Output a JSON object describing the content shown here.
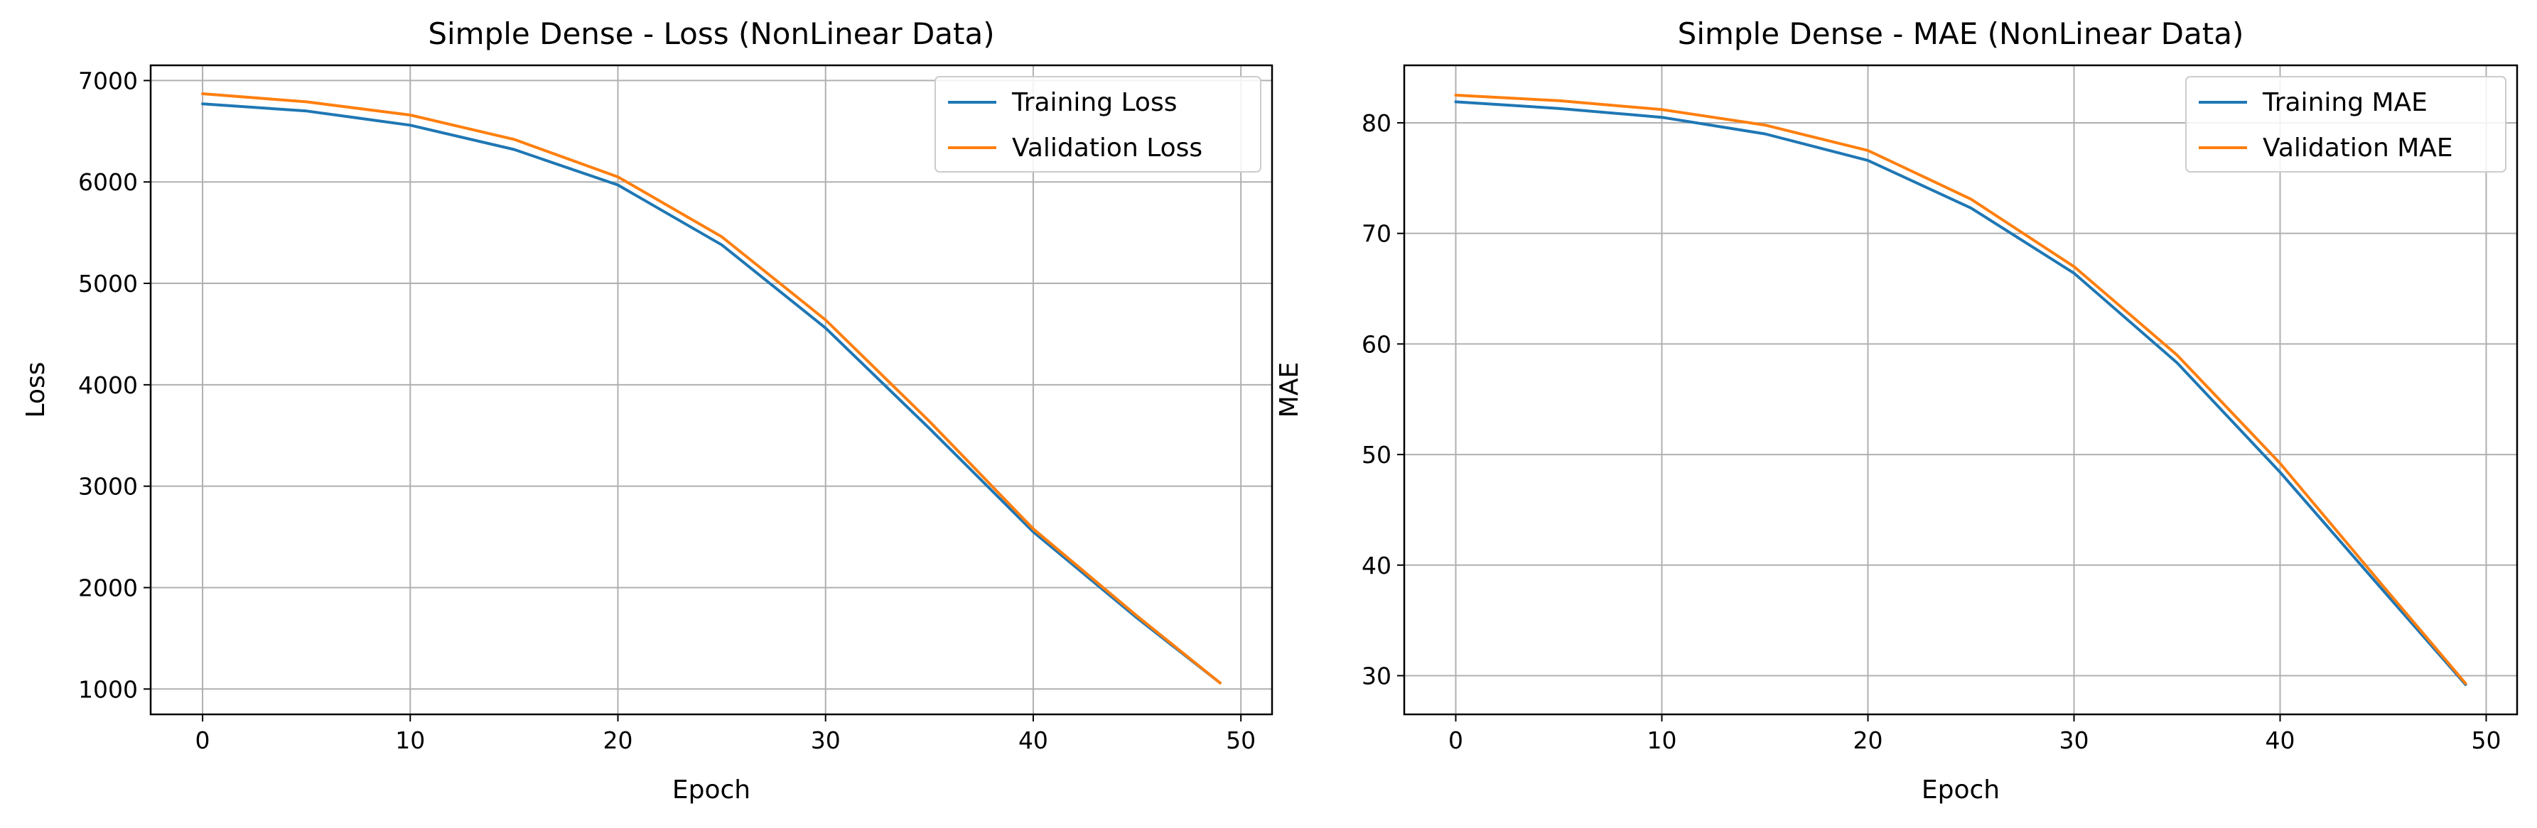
{
  "chart_data": [
    {
      "type": "line",
      "title": "Simple Dense - Loss (NonLinear Data)",
      "xlabel": "Epoch",
      "ylabel": "Loss",
      "xlim": [
        -2.5,
        51.5
      ],
      "ylim": [
        750,
        7150
      ],
      "xticks": [
        0,
        10,
        20,
        30,
        40,
        50
      ],
      "xtick_labels": [
        "0",
        "10",
        "20",
        "30",
        "40",
        "50"
      ],
      "yticks": [
        1000,
        2000,
        3000,
        4000,
        5000,
        6000,
        7000
      ],
      "ytick_labels": [
        "1000",
        "2000",
        "3000",
        "4000",
        "5000",
        "6000",
        "7000"
      ],
      "grid": true,
      "legend_position": "upper right",
      "x": [
        0,
        5,
        10,
        15,
        20,
        25,
        30,
        35,
        40,
        45,
        49
      ],
      "series": [
        {
          "name": "Training Loss",
          "color": "#1f77b4",
          "values": [
            6770,
            6700,
            6560,
            6320,
            5970,
            5380,
            4560,
            3570,
            2550,
            1700,
            1060
          ]
        },
        {
          "name": "Validation Loss",
          "color": "#ff7f0e",
          "values": [
            6870,
            6790,
            6660,
            6420,
            6050,
            5460,
            4640,
            3640,
            2580,
            1720,
            1060
          ]
        }
      ]
    },
    {
      "type": "line",
      "title": "Simple Dense - MAE (NonLinear Data)",
      "xlabel": "Epoch",
      "ylabel": "MAE",
      "xlim": [
        -2.5,
        51.5
      ],
      "ylim": [
        26.5,
        85.2
      ],
      "xticks": [
        0,
        10,
        20,
        30,
        40,
        50
      ],
      "xtick_labels": [
        "0",
        "10",
        "20",
        "30",
        "40",
        "50"
      ],
      "yticks": [
        30,
        40,
        50,
        60,
        70,
        80
      ],
      "ytick_labels": [
        "30",
        "40",
        "50",
        "60",
        "70",
        "80"
      ],
      "grid": true,
      "legend_position": "upper right",
      "x": [
        0,
        5,
        10,
        15,
        20,
        25,
        30,
        35,
        40,
        45,
        49
      ],
      "series": [
        {
          "name": "Training MAE",
          "color": "#1f77b4",
          "values": [
            81.9,
            81.3,
            80.5,
            79.0,
            76.6,
            72.3,
            66.4,
            58.3,
            48.4,
            37.7,
            29.2
          ]
        },
        {
          "name": "Validation MAE",
          "color": "#ff7f0e",
          "values": [
            82.5,
            82.0,
            81.2,
            79.8,
            77.5,
            73.1,
            67.0,
            59.0,
            49.2,
            38.1,
            29.3
          ]
        }
      ]
    }
  ]
}
